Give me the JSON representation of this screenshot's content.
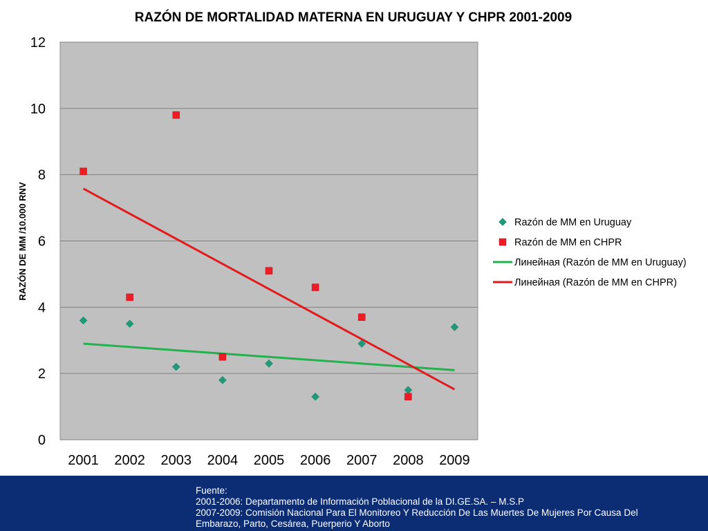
{
  "chart_data": {
    "type": "scatter",
    "title": "RAZÓN DE MORTALIDAD MATERNA EN URUGUAY Y CHPR 2001-2009",
    "ylabel": "RAZÓN DE MM /10.000 RNV",
    "xlabel": "",
    "x": [
      2001,
      2002,
      2003,
      2004,
      2005,
      2006,
      2007,
      2008,
      2009
    ],
    "x_tick_labels": [
      "2001",
      "2002",
      "2003",
      "2004",
      "2005",
      "2006",
      "2007",
      "2008",
      "2009"
    ],
    "ylim": [
      0,
      12
    ],
    "y_ticks": [
      0,
      2,
      4,
      6,
      8,
      10,
      12
    ],
    "y_tick_labels": [
      "0",
      "2",
      "4",
      "6",
      "8",
      "10",
      "12"
    ],
    "grid": true,
    "legend_position": "right",
    "series": [
      {
        "name": "Razón de MM en Uruguay",
        "marker": "diamond",
        "color": "#1e9a78",
        "x": [
          2001,
          2002,
          2003,
          2004,
          2005,
          2006,
          2007,
          2008,
          2009
        ],
        "values": [
          3.6,
          3.5,
          2.2,
          1.8,
          2.3,
          1.3,
          2.9,
          1.5,
          3.4
        ]
      },
      {
        "name": "Razón de MM en CHPR",
        "marker": "square",
        "color": "#ee1c25",
        "x": [
          2001,
          2002,
          2003,
          2004,
          2005,
          2006,
          2007,
          2008
        ],
        "values": [
          8.1,
          4.3,
          9.8,
          2.5,
          5.1,
          4.6,
          3.7,
          1.3
        ]
      }
    ],
    "trendlines": [
      {
        "name": "Линейная (Razón de MM en Uruguay)",
        "color": "#22b14c",
        "x": [
          2001,
          2009
        ],
        "values": [
          2.9,
          2.1
        ]
      },
      {
        "name": "Линейная (Razón de MM en CHPR)",
        "color": "#e31a1c",
        "x": [
          2001,
          2009
        ],
        "values": [
          7.58,
          1.52
        ]
      }
    ],
    "plot_background": "#c0c0c0",
    "grid_color": "#7f7f7f"
  },
  "footer": {
    "background": "#0c2d74",
    "lines": [
      "Fuente:",
      "2001-2006: Departamento de Información Poblacional de la DI.GE.SA. – M.S.P",
      "2007-2009: Comisión Nacional Para El Monitoreo Y Reducción De Las Muertes De Mujeres Por Causa Del",
      "Embarazo, Parto, Cesárea, Puerperio Y Aborto"
    ]
  }
}
